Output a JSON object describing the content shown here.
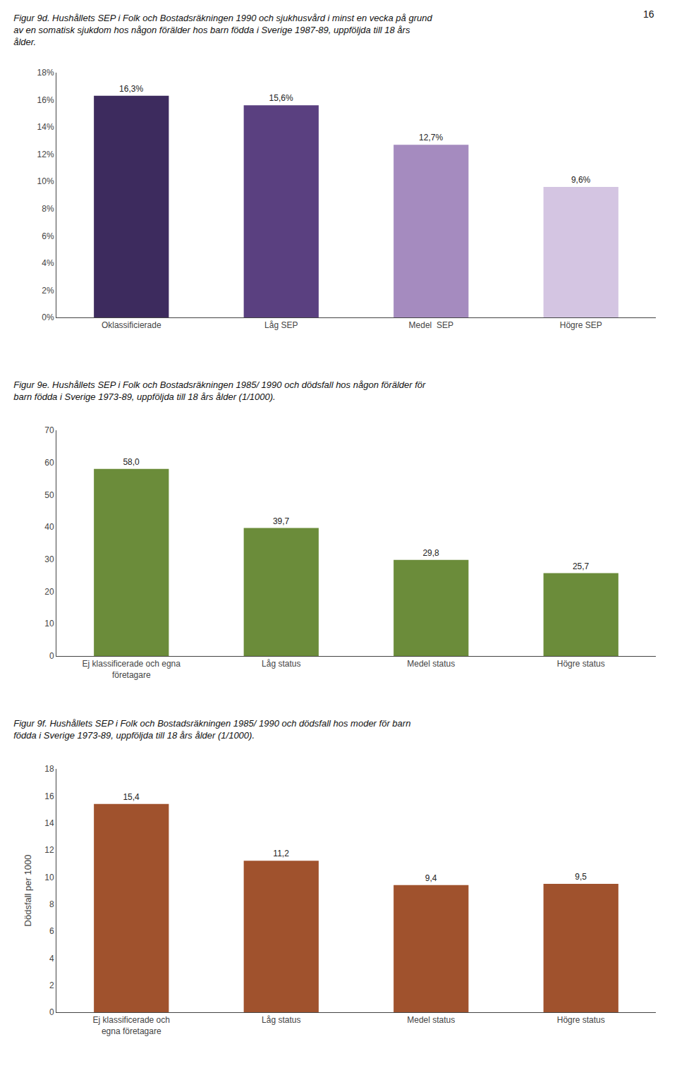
{
  "chart_data": [
    {
      "type": "bar",
      "title": "Figur 9d. Hushållets SEP i Folk och Bostadsräkningen 1990 och sjukhusvård i minst en vecka på grund\nav en somatisk sjukdom hos någon förälder hos barn födda i Sverige 1987-89, uppföljda till 18 års\nålder.",
      "annotations": [
        "16"
      ],
      "categories": [
        "Oklassificierade",
        "Låg SEP",
        "Medel  SEP",
        "Högre SEP"
      ],
      "values": [
        16.3,
        15.6,
        12.7,
        9.6
      ],
      "value_labels": [
        "16,3%",
        "15,6%",
        "12,7%",
        "9,6%"
      ],
      "colors": [
        "#3d2b5e",
        "#5a4080",
        "#a58bbf",
        "#d4c5e2"
      ],
      "ylim": [
        0,
        18
      ],
      "yticks": [
        {
          "value": 0,
          "label": "0%"
        },
        {
          "value": 2,
          "label": "2%"
        },
        {
          "value": 4,
          "label": "4%"
        },
        {
          "value": 6,
          "label": "6%"
        },
        {
          "value": 8,
          "label": "8%"
        },
        {
          "value": 10,
          "label": "10%"
        },
        {
          "value": 12,
          "label": "12%"
        },
        {
          "value": 14,
          "label": "14%"
        },
        {
          "value": 16,
          "label": "16%"
        },
        {
          "value": 18,
          "label": "18%"
        }
      ],
      "data_labels": true,
      "grid": false
    },
    {
      "type": "bar",
      "title": "Figur 9e. Hushållets SEP i Folk och Bostadsräkningen 1985/ 1990 och dödsfall hos någon förälder för\nbarn födda i Sverige 1973-89, uppföljda till 18 års ålder (1/1000).",
      "categories": [
        "Ej klassificerade och egna\nföretagare",
        "Låg status",
        "Medel status",
        "Högre status"
      ],
      "values": [
        58.0,
        39.7,
        29.8,
        25.7
      ],
      "value_labels": [
        "58,0",
        "39,7",
        "29,8",
        "25,7"
      ],
      "color": "#6b8c3a",
      "ylim": [
        0,
        70
      ],
      "yticks": [
        0,
        10,
        20,
        30,
        40,
        50,
        60,
        70
      ],
      "data_labels": true,
      "grid": false
    },
    {
      "type": "bar",
      "title": "Figur 9f. Hushållets SEP i Folk och Bostadsräkningen 1985/ 1990 och dödsfall hos moder för barn\nfödda i Sverige 1973-89, uppföljda till 18 års ålder (1/1000).",
      "y_label": "Dödsfall per 1000",
      "categories": [
        "Ej klassificerade och\negna företagare",
        "Låg status",
        "Medel status",
        "Högre status"
      ],
      "values": [
        15.4,
        11.2,
        9.4,
        9.5
      ],
      "value_labels": [
        "15,4",
        "11,2",
        "9,4",
        "9,5"
      ],
      "color": "#a0522d",
      "ylim": [
        0,
        18
      ],
      "yticks": [
        0,
        2,
        4,
        6,
        8,
        10,
        12,
        14,
        16,
        18
      ],
      "data_labels": true,
      "grid": false
    }
  ]
}
